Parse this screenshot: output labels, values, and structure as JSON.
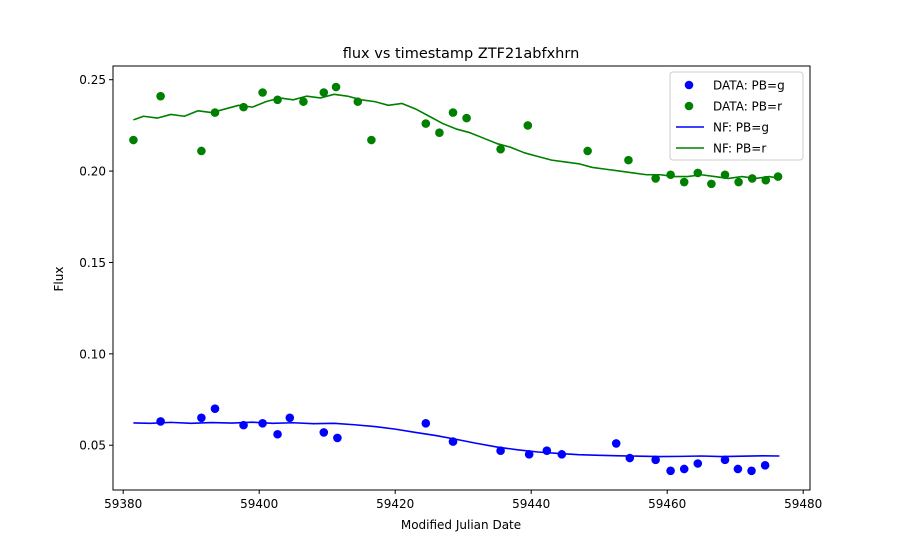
{
  "chart_data": {
    "type": "scatter",
    "title": "flux vs timestamp ZTF21abfxhrn",
    "xlabel": "Modified Julian Date",
    "ylabel": "Flux",
    "xlim": [
      59378.5,
      59481
    ],
    "ylim": [
      0.0255,
      0.2575
    ],
    "xticks": [
      59380,
      59400,
      59420,
      59440,
      59460,
      59480
    ],
    "yticks": [
      0.05,
      0.1,
      0.15,
      0.2,
      0.25
    ],
    "grid": false,
    "legend_position": "top-right",
    "colors": {
      "g": "#0000ff",
      "r": "#008000"
    },
    "series": [
      {
        "name": "DATA: PB=g",
        "kind": "scatter",
        "color": "#0000ff",
        "x": [
          59385.5,
          59391.5,
          59393.5,
          59397.7,
          59400.5,
          59402.7,
          59404.5,
          59409.5,
          59411.5,
          59424.5,
          59428.5,
          59435.5,
          59439.7,
          59442.3,
          59444.5,
          59452.5,
          59454.5,
          59458.3,
          59460.5,
          59462.5,
          59464.5,
          59468.5,
          59470.4,
          59472.4,
          59474.4
        ],
        "y": [
          0.063,
          0.065,
          0.07,
          0.061,
          0.062,
          0.056,
          0.065,
          0.057,
          0.054,
          0.062,
          0.052,
          0.047,
          0.045,
          0.047,
          0.045,
          0.051,
          0.043,
          0.042,
          0.036,
          0.037,
          0.04,
          0.042,
          0.037,
          0.036,
          0.039
        ]
      },
      {
        "name": "DATA: PB=r",
        "kind": "scatter",
        "color": "#008000",
        "x": [
          59381.5,
          59385.5,
          59391.5,
          59393.5,
          59397.7,
          59400.5,
          59402.7,
          59406.5,
          59409.5,
          59411.3,
          59414.5,
          59416.5,
          59424.5,
          59426.5,
          59428.5,
          59430.5,
          59435.5,
          59439.5,
          59448.3,
          59454.3,
          59458.3,
          59460.5,
          59462.5,
          59464.5,
          59466.5,
          59468.5,
          59470.5,
          59472.5,
          59474.5,
          59476.3
        ],
        "y": [
          0.217,
          0.241,
          0.211,
          0.232,
          0.235,
          0.243,
          0.239,
          0.238,
          0.243,
          0.246,
          0.238,
          0.217,
          0.226,
          0.221,
          0.232,
          0.229,
          0.212,
          0.225,
          0.211,
          0.206,
          0.196,
          0.198,
          0.194,
          0.199,
          0.193,
          0.198,
          0.194,
          0.196,
          0.195,
          0.197
        ]
      },
      {
        "name": "NF: PB=g",
        "kind": "line",
        "color": "#0000ff",
        "x": [
          59381.5,
          59384,
          59387,
          59390,
          59393,
          59396,
          59399,
          59402,
          59405,
          59408,
          59411,
          59414,
          59417,
          59420,
          59423,
          59426,
          59429,
          59432,
          59435,
          59438,
          59441,
          59444,
          59447,
          59450,
          59453,
          59456,
          59459,
          59462,
          59465,
          59468,
          59471,
          59474,
          59476.5
        ],
        "y": [
          0.0622,
          0.062,
          0.0625,
          0.062,
          0.0624,
          0.0621,
          0.0626,
          0.062,
          0.0623,
          0.0618,
          0.062,
          0.0612,
          0.0602,
          0.0588,
          0.057,
          0.0553,
          0.0532,
          0.051,
          0.049,
          0.0475,
          0.0463,
          0.0455,
          0.0448,
          0.0445,
          0.0442,
          0.044,
          0.0438,
          0.0439,
          0.0441,
          0.0438,
          0.044,
          0.0442,
          0.0441
        ]
      },
      {
        "name": "NF: PB=r",
        "kind": "line",
        "color": "#008000",
        "x": [
          59381.5,
          59383,
          59385,
          59387,
          59389,
          59391,
          59393,
          59395,
          59397,
          59399,
          59401,
          59403,
          59405,
          59407,
          59409,
          59411,
          59413,
          59415,
          59417,
          59419,
          59421,
          59423,
          59425,
          59427,
          59429,
          59431,
          59433,
          59435,
          59437,
          59439,
          59441,
          59443,
          59445,
          59447,
          59449,
          59451,
          59453,
          59455,
          59457,
          59459,
          59461,
          59463,
          59465,
          59467,
          59469,
          59471,
          59473,
          59475,
          59476.5
        ],
        "y": [
          0.228,
          0.23,
          0.229,
          0.231,
          0.23,
          0.233,
          0.232,
          0.234,
          0.236,
          0.235,
          0.238,
          0.24,
          0.239,
          0.241,
          0.24,
          0.242,
          0.241,
          0.239,
          0.238,
          0.236,
          0.237,
          0.234,
          0.23,
          0.226,
          0.223,
          0.221,
          0.218,
          0.215,
          0.213,
          0.21,
          0.208,
          0.206,
          0.205,
          0.204,
          0.202,
          0.201,
          0.2,
          0.199,
          0.198,
          0.198,
          0.197,
          0.197,
          0.198,
          0.197,
          0.196,
          0.197,
          0.196,
          0.197,
          0.196
        ]
      }
    ]
  }
}
